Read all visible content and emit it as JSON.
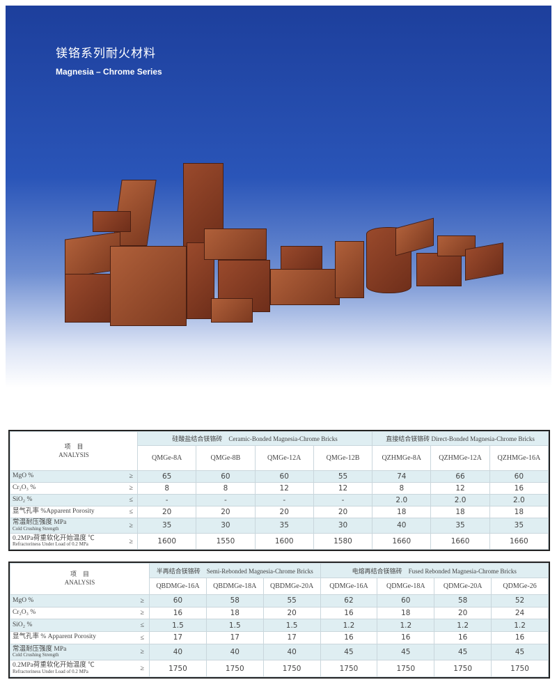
{
  "hero": {
    "title_cn": "镁铬系列耐火材料",
    "title_en": "Magnesia – Chrome Series"
  },
  "colors": {
    "hero_blue": "#1d3f9c",
    "row_shade": "#dfeef2",
    "brick": "#8a3f24"
  },
  "tables": [
    {
      "analysis_cn": "项　目",
      "analysis_en": "ANALYSIS",
      "groups": [
        {
          "label": "硅酸盐结合镁铬砖　Ceramic-Bonded Magnesia-Chrome Bricks",
          "span": 4
        },
        {
          "label": "直接结合镁铬砖 Direct-Bonded Magnesia-Chrome Bricks",
          "span": 3
        }
      ],
      "columns": [
        "QMGe-8A",
        "QMGe-8B",
        "QMGe-12A",
        "QMGe-12B",
        "QZHMGe-8A",
        "QZHMGe-12A",
        "QZHMGe-16A"
      ],
      "rows": [
        {
          "label": "MgO %",
          "sub": "",
          "sym": "≥",
          "values": [
            "65",
            "60",
            "60",
            "55",
            "74",
            "66",
            "60"
          ]
        },
        {
          "label": "Cr₂O₃ %",
          "sub": "",
          "sym": "≥",
          "values": [
            "8",
            "8",
            "12",
            "12",
            "8",
            "12",
            "16"
          ]
        },
        {
          "label": "SiO₂ %",
          "sub": "",
          "sym": "≤",
          "values": [
            "-",
            "-",
            "-",
            "-",
            "2.0",
            "2.0",
            "2.0"
          ]
        },
        {
          "label": "显气孔率 %Apparent Porosity",
          "sub": "",
          "sym": "≤",
          "values": [
            "20",
            "20",
            "20",
            "20",
            "18",
            "18",
            "18"
          ]
        },
        {
          "label": "常温耐压强度 MPa",
          "sub": "Cold Crushing Strength",
          "sym": "≥",
          "values": [
            "35",
            "30",
            "35",
            "30",
            "40",
            "35",
            "35"
          ]
        },
        {
          "label": "0.2MPa荷重软化开始温度 ℃",
          "sub": "Refractoriness Under Load of 0.2 MPa",
          "sym": "≥",
          "values": [
            "1600",
            "1550",
            "1600",
            "1580",
            "1660",
            "1660",
            "1660"
          ]
        }
      ]
    },
    {
      "analysis_cn": "项　目",
      "analysis_en": "ANALYSIS",
      "groups": [
        {
          "label": "半再结合镁铬砖　Semi-Rebonded Magnesia-Chrome Bricks",
          "span": 3
        },
        {
          "label": "电熔再结合镁铬砖　Fused Rebonded Magnesia-Chrome Bricks",
          "span": 4
        }
      ],
      "columns": [
        "QBDMGe-16A",
        "QBDMGe-18A",
        "QBDMGe-20A",
        "QDMGe-16A",
        "QDMGe-18A",
        "QDMGe-20A",
        "QDMGe-26"
      ],
      "rows": [
        {
          "label": "MgO %",
          "sub": "",
          "sym": "≥",
          "values": [
            "60",
            "58",
            "55",
            "62",
            "60",
            "58",
            "52"
          ]
        },
        {
          "label": "Cr₂O₃ %",
          "sub": "",
          "sym": "≥",
          "values": [
            "16",
            "18",
            "20",
            "16",
            "18",
            "20",
            "24"
          ]
        },
        {
          "label": "SiO₂ %",
          "sub": "",
          "sym": "≤",
          "values": [
            "1.5",
            "1.5",
            "1.5",
            "1.2",
            "1.2",
            "1.2",
            "1.2"
          ]
        },
        {
          "label": "显气孔率 % Apparent Porosity",
          "sub": "",
          "sym": "≤",
          "values": [
            "17",
            "17",
            "17",
            "16",
            "16",
            "16",
            "16"
          ]
        },
        {
          "label": "常温耐压强度 MPa",
          "sub": "Cold Crushing Strength",
          "sym": "≥",
          "values": [
            "40",
            "40",
            "40",
            "45",
            "45",
            "45",
            "45"
          ]
        },
        {
          "label": "0.2MPa荷重软化开始温度 ℃",
          "sub": "Refractoriness Under Load of 0.2 MPa",
          "sym": "≥",
          "values": [
            "1750",
            "1750",
            "1750",
            "1750",
            "1750",
            "1750",
            "1750"
          ]
        }
      ]
    }
  ]
}
